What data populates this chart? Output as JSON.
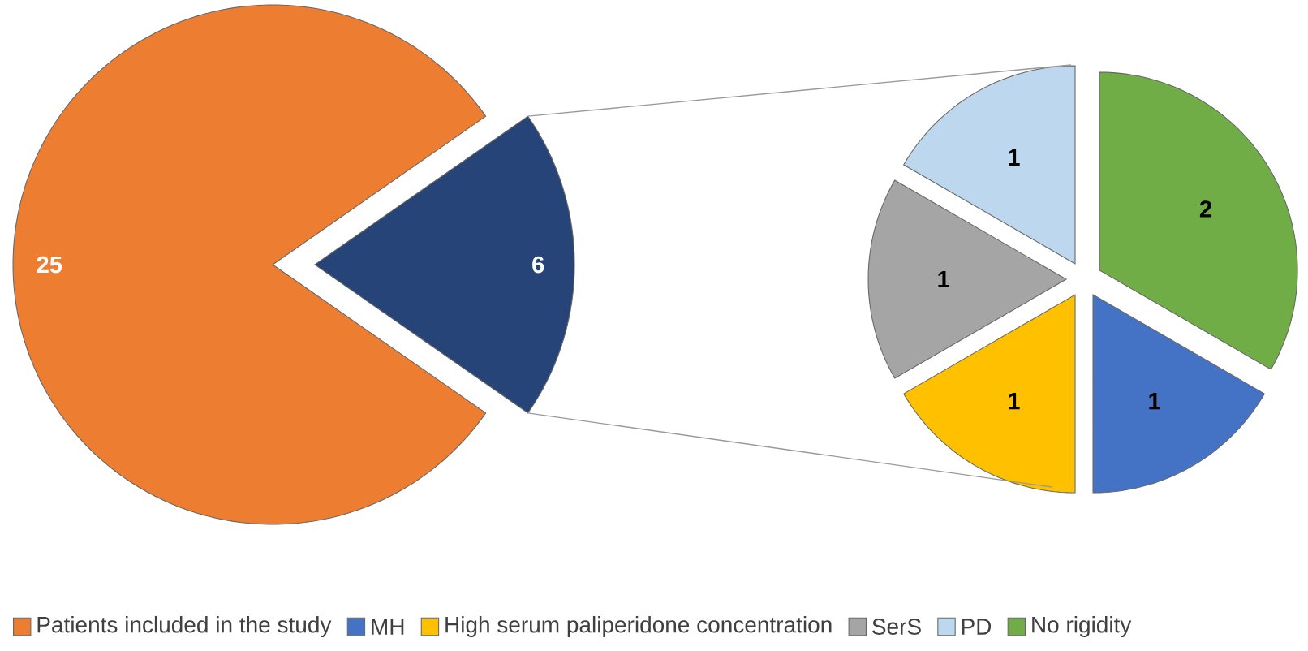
{
  "chart_data": [
    {
      "type": "pie",
      "categories": [
        "Patients included in the study",
        null
      ],
      "values": [
        25,
        6
      ],
      "colors": [
        "#ed7d31",
        "#264478"
      ],
      "data_labels": true,
      "legend": "bottom"
    },
    {
      "type": "pie",
      "categories": [
        "MH",
        "High serum paliperidone concentration",
        "SerS",
        "PD",
        "No rigidity"
      ],
      "values": [
        1,
        1,
        1,
        1,
        2
      ],
      "colors": [
        "#4472c4",
        "#ffc000",
        "#a5a5a5",
        "#bdd7ee",
        "#70ad47"
      ],
      "data_labels": true,
      "legend": "bottom"
    }
  ]
}
